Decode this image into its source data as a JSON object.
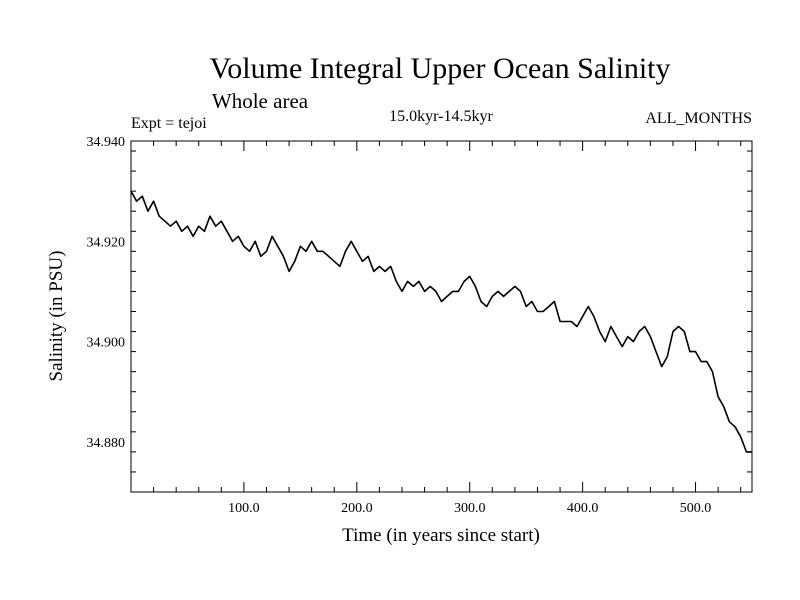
{
  "chart_data": {
    "type": "line",
    "title": "Volume Integral Upper Ocean Salinity",
    "subtitle": "Whole area",
    "annotations": {
      "left": "Expt = tejoi",
      "center": "15.0kyr-14.5kyr",
      "right": "ALL_MONTHS"
    },
    "xlabel": "Time (in years since start)",
    "ylabel": "Salinity (in PSU)",
    "xlim": [
      0,
      550
    ],
    "ylim": [
      34.87,
      34.94
    ],
    "xticks": [
      {
        "value": 100,
        "label": "100.0"
      },
      {
        "value": 200,
        "label": "200.0"
      },
      {
        "value": 300,
        "label": "300.0"
      },
      {
        "value": 400,
        "label": "400.0"
      },
      {
        "value": 500,
        "label": "500.0"
      }
    ],
    "yticks": [
      {
        "value": 34.88,
        "label": "34.880"
      },
      {
        "value": 34.9,
        "label": "34.900"
      },
      {
        "value": 34.92,
        "label": "34.920"
      },
      {
        "value": 34.94,
        "label": "34.940"
      }
    ],
    "grid": false,
    "series": [
      {
        "name": "Salinity",
        "x": [
          0,
          5,
          10,
          15,
          20,
          25,
          30,
          35,
          40,
          45,
          50,
          55,
          60,
          65,
          70,
          75,
          80,
          85,
          90,
          95,
          100,
          105,
          110,
          115,
          120,
          125,
          130,
          135,
          140,
          145,
          150,
          155,
          160,
          165,
          170,
          175,
          180,
          185,
          190,
          195,
          200,
          205,
          210,
          215,
          220,
          225,
          230,
          235,
          240,
          245,
          250,
          255,
          260,
          265,
          270,
          275,
          280,
          285,
          290,
          295,
          300,
          305,
          310,
          315,
          320,
          325,
          330,
          335,
          340,
          345,
          350,
          355,
          360,
          365,
          370,
          375,
          380,
          385,
          390,
          395,
          400,
          405,
          410,
          415,
          420,
          425,
          430,
          435,
          440,
          445,
          450,
          455,
          460,
          465,
          470,
          475,
          480,
          485,
          490,
          495,
          500,
          505,
          510,
          515,
          520,
          525,
          530,
          535,
          540,
          545,
          550
        ],
        "y": [
          34.93,
          34.928,
          34.929,
          34.926,
          34.928,
          34.925,
          34.924,
          34.923,
          34.924,
          34.922,
          34.923,
          34.921,
          34.923,
          34.922,
          34.925,
          34.923,
          34.924,
          34.922,
          34.92,
          34.921,
          34.919,
          34.918,
          34.92,
          34.917,
          34.918,
          34.921,
          34.919,
          34.917,
          34.914,
          34.916,
          34.919,
          34.918,
          34.92,
          34.918,
          34.918,
          34.917,
          34.916,
          34.915,
          34.918,
          34.92,
          34.918,
          34.916,
          34.917,
          34.914,
          34.915,
          34.914,
          34.915,
          34.912,
          34.91,
          34.912,
          34.911,
          34.912,
          34.91,
          34.911,
          34.91,
          34.908,
          34.909,
          34.91,
          34.91,
          34.912,
          34.913,
          34.911,
          34.908,
          34.907,
          34.909,
          34.91,
          34.909,
          34.91,
          34.911,
          34.91,
          34.907,
          34.908,
          34.906,
          34.906,
          34.907,
          34.908,
          34.904,
          34.904,
          34.904,
          34.903,
          34.905,
          34.907,
          34.905,
          34.902,
          34.9,
          34.903,
          34.901,
          34.899,
          34.901,
          34.9,
          34.902,
          34.903,
          34.901,
          34.898,
          34.895,
          34.897,
          34.902,
          34.903,
          34.902,
          34.898,
          34.898,
          34.896,
          34.896,
          34.894,
          34.889,
          34.887,
          34.884,
          34.883,
          34.881,
          34.878,
          34.878
        ]
      }
    ]
  }
}
